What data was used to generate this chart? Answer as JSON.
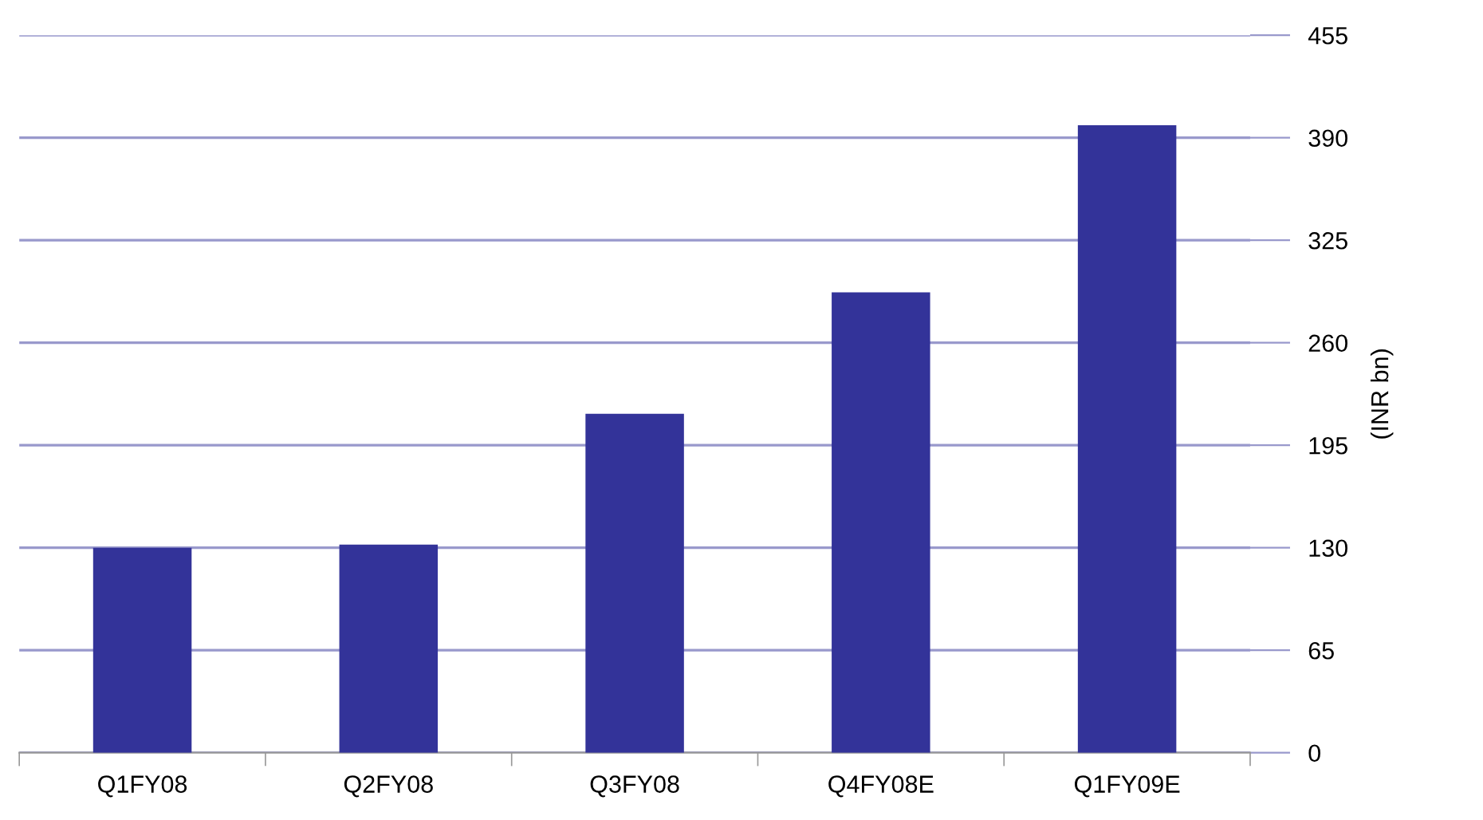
{
  "chart_data": {
    "type": "bar",
    "ylabel": "(INR bn)",
    "categories": [
      "Q1FY08",
      "Q2FY08",
      "Q3FY08",
      "Q4FY08E",
      "Q1FY09E"
    ],
    "series": [
      {
        "color": "#333399",
        "values": [
          130,
          132,
          215,
          292,
          398
        ]
      }
    ],
    "ylim": [
      0,
      455
    ],
    "yticks": [
      0,
      65,
      130,
      195,
      260,
      325,
      390,
      455
    ],
    "grid": "y",
    "legend": false
  }
}
